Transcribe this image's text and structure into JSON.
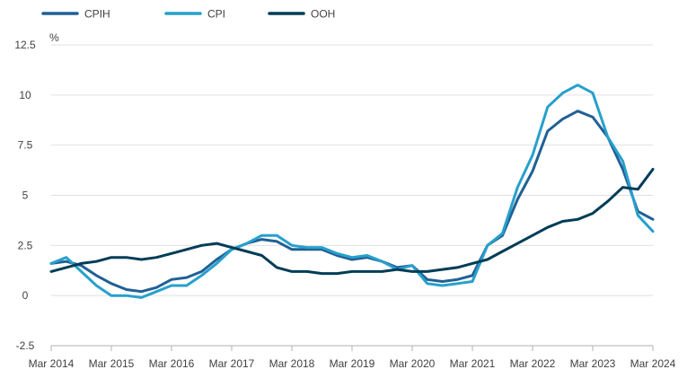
{
  "chart_data": {
    "type": "line",
    "y_unit": "%",
    "ylim": [
      -2.5,
      12.5
    ],
    "y_ticks": [
      -2.5,
      0,
      2.5,
      5,
      7.5,
      10,
      12.5
    ],
    "y_tick_labels": [
      "-2.5",
      "0",
      "2.5",
      "5",
      "7.5",
      "10",
      "12.5"
    ],
    "x_tick_labels": [
      "Mar 2014",
      "Mar 2015",
      "Mar 2016",
      "Mar 2017",
      "Mar 2018",
      "Mar 2019",
      "Mar 2020",
      "Mar 2021",
      "Mar 2022",
      "Mar 2023",
      "Mar 2024"
    ],
    "grid": "horizontal",
    "legend_position": "top-left",
    "x_start": "Mar 2014",
    "x_end": "Mar 2024",
    "series": [
      {
        "name": "CPIH",
        "color": "#206095",
        "x": [
          "Mar 2014",
          "Jun 2014",
          "Sep 2014",
          "Dec 2014",
          "Mar 2015",
          "Jun 2015",
          "Sep 2015",
          "Dec 2015",
          "Mar 2016",
          "Jun 2016",
          "Sep 2016",
          "Dec 2016",
          "Mar 2017",
          "Jun 2017",
          "Sep 2017",
          "Dec 2017",
          "Mar 2018",
          "Jun 2018",
          "Sep 2018",
          "Dec 2018",
          "Mar 2019",
          "Jun 2019",
          "Sep 2019",
          "Dec 2019",
          "Mar 2020",
          "Jun 2020",
          "Sep 2020",
          "Dec 2020",
          "Mar 2021",
          "Jun 2021",
          "Sep 2021",
          "Dec 2021",
          "Mar 2022",
          "Jun 2022",
          "Sep 2022",
          "Dec 2022",
          "Mar 2023",
          "Jun 2023",
          "Sep 2023",
          "Dec 2023",
          "Mar 2024"
        ],
        "values": [
          1.6,
          1.7,
          1.5,
          1.0,
          0.6,
          0.3,
          0.2,
          0.4,
          0.8,
          0.9,
          1.2,
          1.8,
          2.3,
          2.6,
          2.8,
          2.7,
          2.3,
          2.3,
          2.3,
          2.0,
          1.8,
          1.9,
          1.7,
          1.4,
          1.5,
          0.8,
          0.7,
          0.8,
          1.0,
          2.5,
          3.0,
          4.8,
          6.2,
          8.2,
          8.8,
          9.2,
          8.9,
          7.9,
          6.3,
          4.2,
          3.8
        ]
      },
      {
        "name": "CPI",
        "color": "#27a0cc",
        "x": [
          "Mar 2014",
          "Jun 2014",
          "Sep 2014",
          "Dec 2014",
          "Mar 2015",
          "Jun 2015",
          "Sep 2015",
          "Dec 2015",
          "Mar 2016",
          "Jun 2016",
          "Sep 2016",
          "Dec 2016",
          "Mar 2017",
          "Jun 2017",
          "Sep 2017",
          "Dec 2017",
          "Mar 2018",
          "Jun 2018",
          "Sep 2018",
          "Dec 2018",
          "Mar 2019",
          "Jun 2019",
          "Sep 2019",
          "Dec 2019",
          "Mar 2020",
          "Jun 2020",
          "Sep 2020",
          "Dec 2020",
          "Mar 2021",
          "Jun 2021",
          "Sep 2021",
          "Dec 2021",
          "Mar 2022",
          "Jun 2022",
          "Sep 2022",
          "Dec 2022",
          "Mar 2023",
          "Jun 2023",
          "Sep 2023",
          "Dec 2023",
          "Mar 2024"
        ],
        "values": [
          1.6,
          1.9,
          1.2,
          0.5,
          0.0,
          0.0,
          -0.1,
          0.2,
          0.5,
          0.5,
          1.0,
          1.6,
          2.3,
          2.6,
          3.0,
          3.0,
          2.5,
          2.4,
          2.4,
          2.1,
          1.9,
          2.0,
          1.7,
          1.3,
          1.5,
          0.6,
          0.5,
          0.6,
          0.7,
          2.5,
          3.1,
          5.4,
          7.0,
          9.4,
          10.1,
          10.5,
          10.1,
          7.9,
          6.7,
          4.0,
          3.2
        ]
      },
      {
        "name": "OOH",
        "color": "#003c57",
        "x": [
          "Mar 2014",
          "Jun 2014",
          "Sep 2014",
          "Dec 2014",
          "Mar 2015",
          "Jun 2015",
          "Sep 2015",
          "Dec 2015",
          "Mar 2016",
          "Jun 2016",
          "Sep 2016",
          "Dec 2016",
          "Mar 2017",
          "Jun 2017",
          "Sep 2017",
          "Dec 2017",
          "Mar 2018",
          "Jun 2018",
          "Sep 2018",
          "Dec 2018",
          "Mar 2019",
          "Jun 2019",
          "Sep 2019",
          "Dec 2019",
          "Mar 2020",
          "Jun 2020",
          "Sep 2020",
          "Dec 2020",
          "Mar 2021",
          "Jun 2021",
          "Sep 2021",
          "Dec 2021",
          "Mar 2022",
          "Jun 2022",
          "Sep 2022",
          "Dec 2022",
          "Mar 2023",
          "Jun 2023",
          "Sep 2023",
          "Dec 2023",
          "Mar 2024"
        ],
        "values": [
          1.2,
          1.4,
          1.6,
          1.7,
          1.9,
          1.9,
          1.8,
          1.9,
          2.1,
          2.3,
          2.5,
          2.6,
          2.4,
          2.2,
          2.0,
          1.4,
          1.2,
          1.2,
          1.1,
          1.1,
          1.2,
          1.2,
          1.2,
          1.3,
          1.2,
          1.2,
          1.3,
          1.4,
          1.6,
          1.8,
          2.2,
          2.6,
          3.0,
          3.4,
          3.7,
          3.8,
          4.1,
          4.7,
          5.4,
          5.3,
          6.3
        ]
      }
    ]
  }
}
